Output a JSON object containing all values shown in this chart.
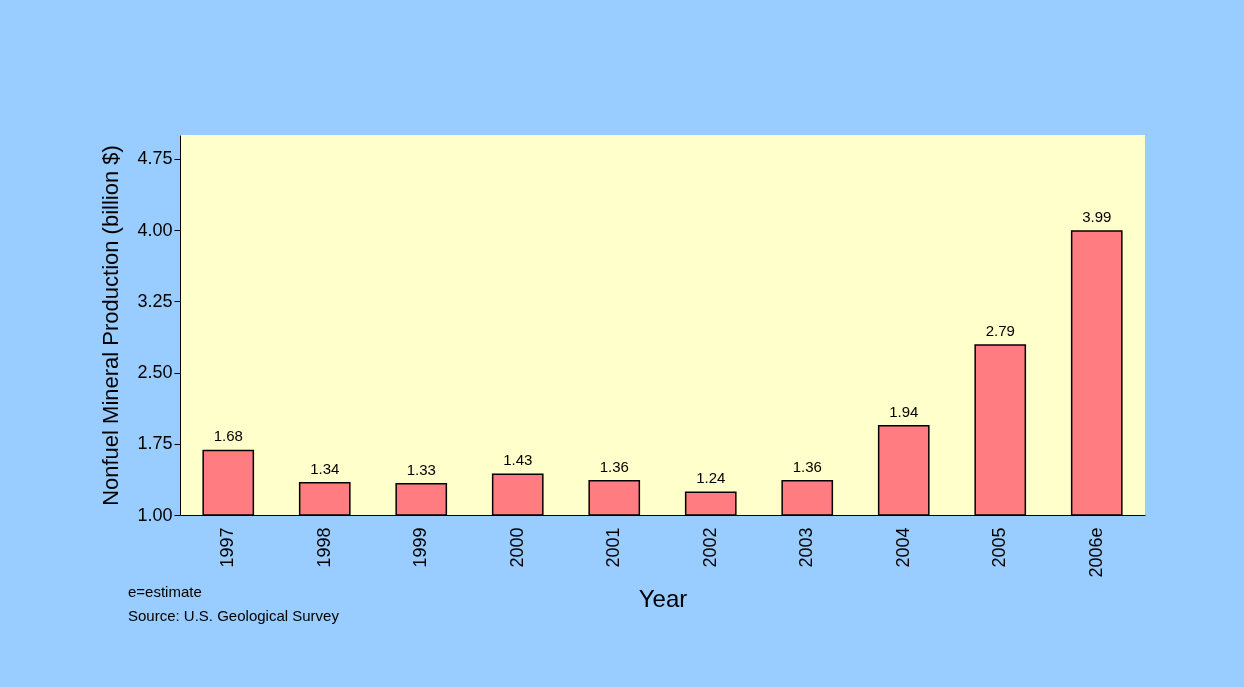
{
  "chart_data": {
    "type": "bar",
    "xlabel": "Year",
    "ylabel": "Nonfuel Mineral Production (billion $)",
    "categories": [
      "1997",
      "1998",
      "1999",
      "2000",
      "2001",
      "2002",
      "2003",
      "2004",
      "2005",
      "2006e"
    ],
    "values": [
      1.68,
      1.34,
      1.33,
      1.43,
      1.36,
      1.24,
      1.36,
      1.94,
      2.79,
      3.99
    ],
    "color": "#ff7c80",
    "ylim": [
      1,
      5
    ],
    "yticks": [
      {
        "value": 1,
        "label": "1.00"
      },
      1.75,
      {
        "value": 2.5,
        "label": "2.50"
      },
      3.25,
      {
        "value": 4,
        "label": "4.00"
      },
      4.75
    ],
    "data_labels": true,
    "grid": false,
    "annotations": [
      "e=estimate",
      "Source: U.S. Geological Survey"
    ]
  }
}
